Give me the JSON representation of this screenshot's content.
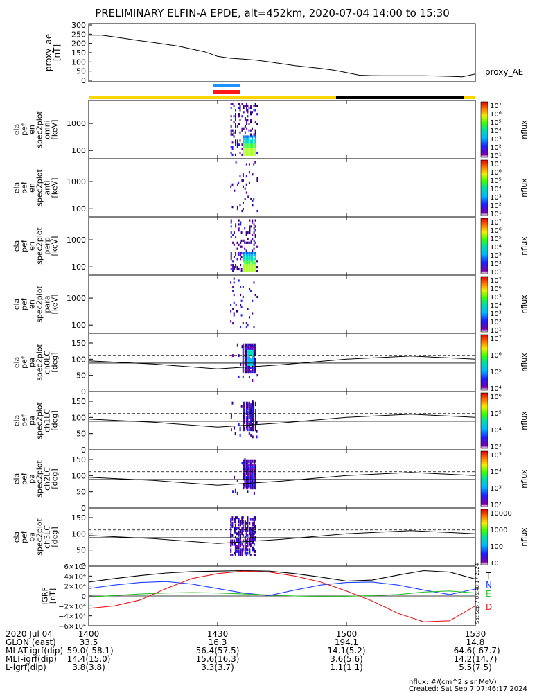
{
  "title": "PRELIMINARY ELFIN-A EPDE, alt=452km, 2020-07-04 14:00 to 15:30",
  "colors": {
    "science_bar": "#ffd500",
    "night_bar": "#000000",
    "flag_blue": "#1e90ff",
    "flag_red": "#ff1a1a",
    "trace_black": "#000000",
    "trace_blue": "#1f3fff",
    "trace_green": "#2cbf2c",
    "trace_red": "#e41a1c"
  },
  "chart_data": [
    {
      "id": "proxy_ae",
      "type": "line",
      "ylabel": [
        "proxy_ae",
        "[nT]"
      ],
      "legend": "proxy_AE",
      "ylim": [
        0,
        300
      ],
      "yticks": [
        0,
        50,
        100,
        150,
        200,
        250,
        300
      ],
      "x": [
        14.0,
        14.05,
        14.1,
        14.15,
        14.2,
        14.25,
        14.3,
        14.35,
        14.4,
        14.45,
        14.5,
        14.55,
        14.6,
        14.65,
        14.7,
        14.75,
        14.8,
        14.85,
        14.9,
        14.95,
        15.0,
        15.05,
        15.1,
        15.15,
        15.2,
        15.25,
        15.3,
        15.35,
        15.4,
        15.45,
        15.5
      ],
      "values": [
        245,
        245,
        235,
        225,
        215,
        205,
        195,
        185,
        170,
        155,
        130,
        120,
        115,
        110,
        100,
        90,
        80,
        72,
        65,
        55,
        42,
        28,
        26,
        25,
        25,
        25,
        25,
        24,
        22,
        20,
        35
      ]
    },
    {
      "id": "spec_omni",
      "type": "heatmap",
      "ylabel": [
        "ela",
        "pef",
        "en",
        "spec2plot",
        "omni",
        "[keV]"
      ],
      "yscale": "log",
      "ylim": [
        50,
        7000
      ],
      "yticks": [
        "100",
        "1000"
      ],
      "colorbar": {
        "title": "nflux",
        "labels": [
          "10⁷",
          "10⁶",
          "10⁵",
          "10⁴",
          "10³",
          "10²",
          "10¹"
        ]
      }
    },
    {
      "id": "spec_anti",
      "type": "heatmap",
      "ylabel": [
        "ela",
        "pef",
        "en",
        "spec2plot",
        "anti",
        "[keV]"
      ],
      "yscale": "log",
      "ylim": [
        50,
        7000
      ],
      "yticks": [
        "100",
        "1000"
      ],
      "colorbar": {
        "title": "nflux",
        "labels": [
          "10⁷",
          "10⁶",
          "10⁵",
          "10⁴",
          "10³",
          "10²",
          "10¹"
        ]
      }
    },
    {
      "id": "spec_perp",
      "type": "heatmap",
      "ylabel": [
        "ela",
        "pef",
        "en",
        "spec2plot",
        "perp",
        "[keV]"
      ],
      "yscale": "log",
      "ylim": [
        50,
        7000
      ],
      "yticks": [
        "100",
        "1000"
      ],
      "colorbar": {
        "title": "nflux",
        "labels": [
          "10⁷",
          "10⁶",
          "10⁵",
          "10⁴",
          "10³",
          "10²",
          "10¹"
        ]
      }
    },
    {
      "id": "spec_para",
      "type": "heatmap",
      "ylabel": [
        "ela",
        "pef",
        "en",
        "spec2plot",
        "para",
        "[keV]"
      ],
      "yscale": "log",
      "ylim": [
        50,
        7000
      ],
      "yticks": [
        "100",
        "1000"
      ],
      "colorbar": {
        "title": "nflux",
        "labels": [
          "10⁷",
          "10⁶",
          "10⁵",
          "10⁴",
          "10³",
          "10²",
          "10¹"
        ]
      }
    },
    {
      "id": "pa_ch0",
      "type": "heatmap",
      "ylabel": [
        "ela",
        "pef",
        "pa",
        "spec2plot",
        "ch0LC",
        "[deg]"
      ],
      "ylim": [
        0,
        180
      ],
      "yticks": [
        "0",
        "50",
        "100",
        "150"
      ],
      "colorbar": {
        "title": "nflux",
        "labels": [
          "10⁷",
          "10⁶",
          "10⁵",
          "10⁴"
        ]
      }
    },
    {
      "id": "pa_ch1",
      "type": "heatmap",
      "ylabel": [
        "ela",
        "pef",
        "pa",
        "spec2plot",
        "ch1LC",
        "[deg]"
      ],
      "ylim": [
        0,
        180
      ],
      "yticks": [
        "0",
        "50",
        "100",
        "150"
      ],
      "colorbar": {
        "title": "nflux",
        "labels": [
          "10⁶",
          "10⁵",
          "10⁴",
          "10³"
        ]
      }
    },
    {
      "id": "pa_ch2",
      "type": "heatmap",
      "ylabel": [
        "ela",
        "pef",
        "pa",
        "spec2plot",
        "ch2LC",
        "[deg]"
      ],
      "ylim": [
        0,
        180
      ],
      "yticks": [
        "0",
        "50",
        "100",
        "150"
      ],
      "colorbar": {
        "title": "nflux",
        "labels": [
          "10⁵",
          "10⁴",
          "10³",
          "10²"
        ]
      }
    },
    {
      "id": "pa_ch3",
      "type": "heatmap",
      "ylabel": [
        "ela",
        "pef",
        "pa",
        "spec2plot",
        "ch3LC",
        "[deg]"
      ],
      "ylim": [
        0,
        180
      ],
      "yticks": [
        "0",
        "50",
        "100",
        "150"
      ],
      "colorbar": {
        "title": "nflux",
        "labels": [
          "10000",
          "1000",
          "100",
          "10"
        ]
      }
    },
    {
      "id": "igrf",
      "type": "line",
      "ylabel": [
        "IGRF",
        "[nT]"
      ],
      "ylim": [
        -60000,
        60000
      ],
      "yticks": [
        "6×10⁴",
        "4×10⁴",
        "2×10⁴",
        "0",
        "−2×10⁴",
        "−4×10⁴",
        "−6×10⁴"
      ],
      "x": [
        14.0,
        14.1,
        14.2,
        14.3,
        14.4,
        14.5,
        14.6,
        14.7,
        14.8,
        14.9,
        15.0,
        15.1,
        15.2,
        15.3,
        15.4,
        15.5
      ],
      "series": [
        {
          "name": "T",
          "color": "#000000",
          "values": [
            28000,
            35000,
            41000,
            46000,
            49000,
            50000,
            51000,
            50000,
            45000,
            38000,
            30000,
            32000,
            42000,
            51000,
            48000,
            34000
          ]
        },
        {
          "name": "N",
          "color": "#1f3fff",
          "values": [
            15000,
            22000,
            27000,
            29000,
            24000,
            15000,
            6000,
            1000,
            12000,
            22000,
            27000,
            28000,
            22000,
            12000,
            3000,
            14000
          ]
        },
        {
          "name": "E",
          "color": "#2cbf2c",
          "values": [
            -2000,
            1000,
            4000,
            6000,
            7000,
            6000,
            4000,
            2000,
            0,
            -1000,
            -500,
            800,
            3000,
            8000,
            10000,
            6000
          ]
        },
        {
          "name": "D",
          "color": "#e41a1c",
          "values": [
            -25000,
            -20000,
            -8000,
            15000,
            35000,
            45000,
            50000,
            48000,
            40000,
            28000,
            10000,
            -10000,
            -35000,
            -52000,
            -50000,
            -20000
          ]
        }
      ]
    }
  ],
  "xaxis": {
    "ticks": [
      "1400",
      "1430",
      "1500",
      "1530"
    ],
    "rows": [
      {
        "label": "2020 Jul 04",
        "values": [
          "1400",
          "1430",
          "1500",
          "1530"
        ]
      },
      {
        "label": "GLON (east)",
        "values": [
          "33.5",
          "16.3",
          "194.1",
          "14.8"
        ]
      },
      {
        "label": "MLAT-igrf(dip)",
        "values": [
          "-59.0(-58.1)",
          "56.4(57.5)",
          "14.1(5.2)",
          "-64.6(-67.7)"
        ]
      },
      {
        "label": "MLT-igrf(dip)",
        "values": [
          "14.4(15.0)",
          "15.6(16.3)",
          "3.6(5.6)",
          "14.2(14.7)"
        ]
      },
      {
        "label": "L-igrf(dip)",
        "values": [
          "3.8(3.8)",
          "3.3(3.7)",
          "1.1(1.1)",
          "5.5(7.5)"
        ]
      }
    ]
  },
  "footer": {
    "units": "nflux: #/(cm^2 s sr MeV)",
    "created": "Created: Sat Sep  7 07:46:17 2024",
    "side_stamp": "Sat Sep  7 06:48:17 2024"
  }
}
